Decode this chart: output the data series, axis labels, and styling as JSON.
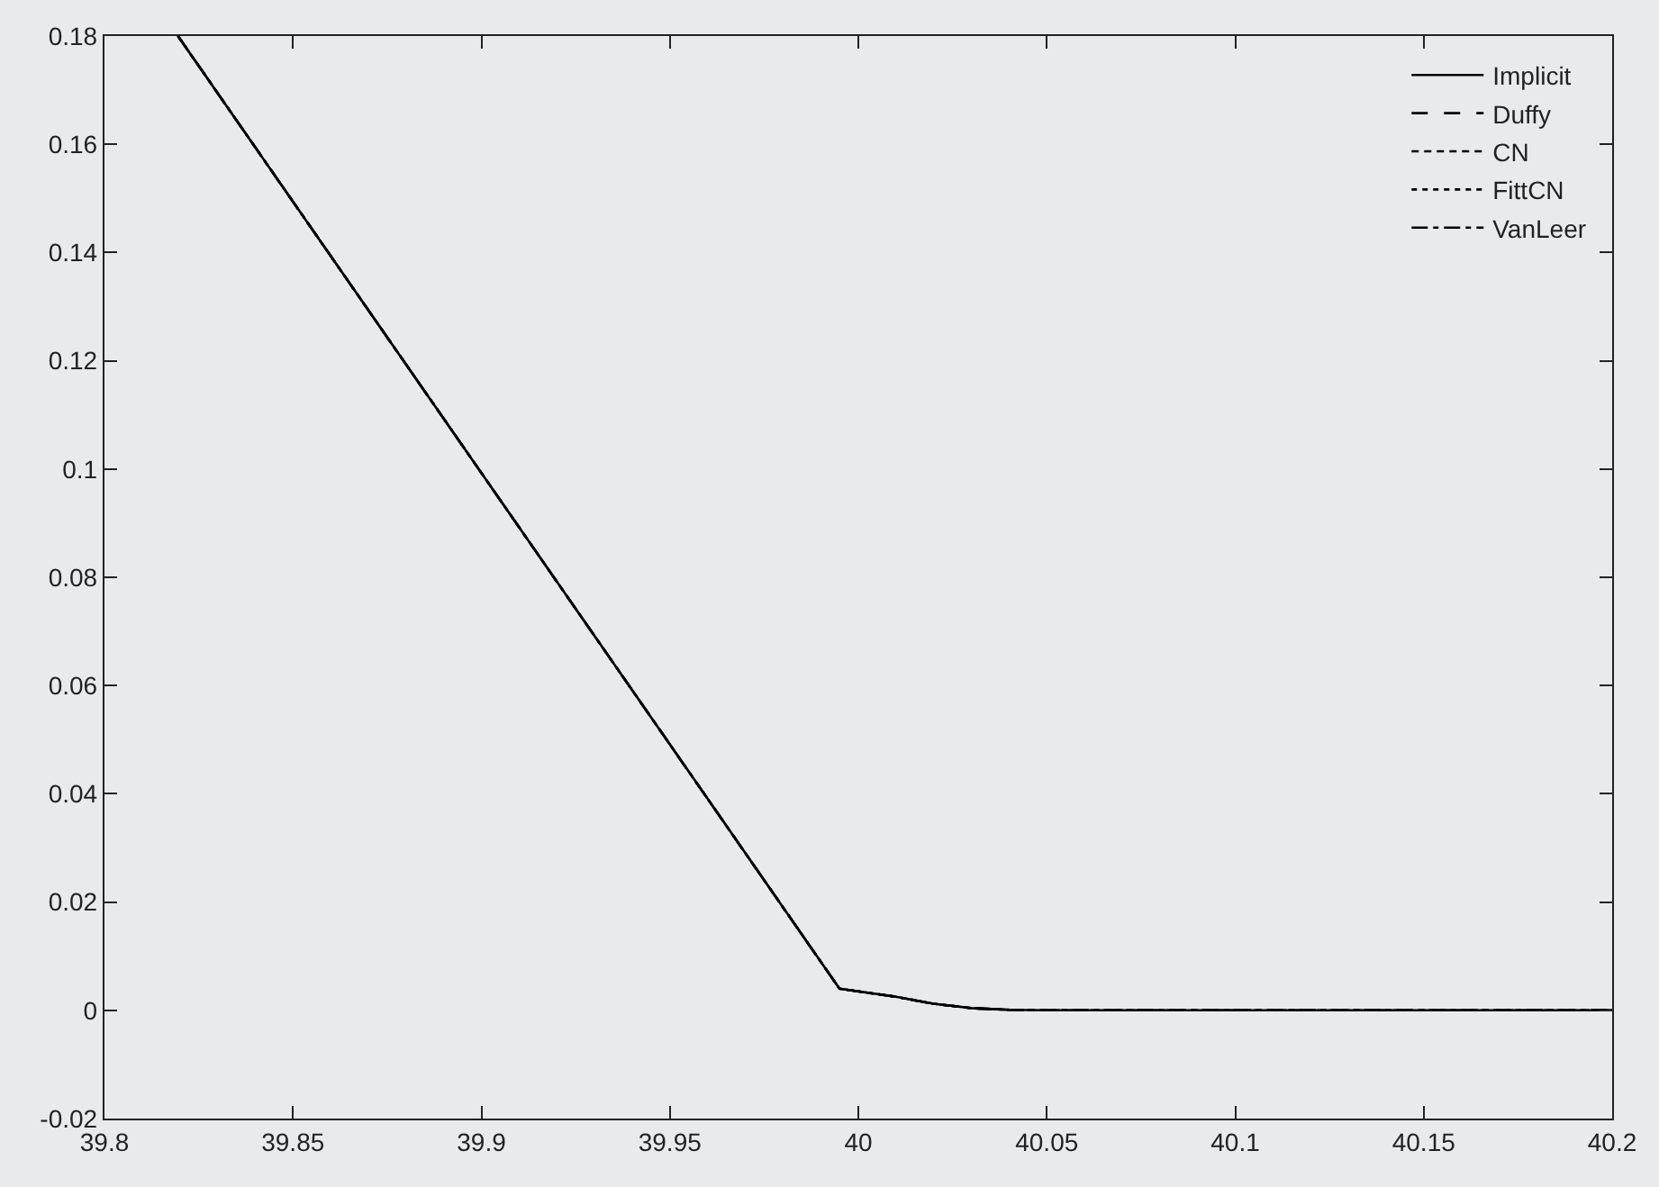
{
  "chart_data": {
    "type": "line",
    "x": [
      39.8195,
      39.995,
      40.01,
      40.02,
      40.03,
      40.04,
      40.05,
      40.2
    ],
    "series": [
      {
        "name": "Implicit",
        "color": "#000000",
        "line_style": "solid",
        "values": [
          0.18,
          0.004,
          0.0025,
          0.0012,
          0.0004,
          0.0001,
          0,
          0
        ]
      },
      {
        "name": "Duffy",
        "color": "#000000",
        "line_style": "dashed",
        "values": [
          0.18,
          0.004,
          0.0025,
          0.0012,
          0.0004,
          0.0001,
          0,
          0
        ]
      },
      {
        "name": "CN",
        "color": "#000000",
        "line_style": "shortdash",
        "values": [
          0.18,
          0.004,
          0.0025,
          0.0012,
          0.0004,
          0.0001,
          0,
          0
        ]
      },
      {
        "name": "FittCN",
        "color": "#000000",
        "line_style": "dotted",
        "values": [
          0.18,
          0.004,
          0.0025,
          0.0012,
          0.0004,
          0.0001,
          0,
          0
        ]
      },
      {
        "name": "VanLeer",
        "color": "#000000",
        "line_style": "dashdot",
        "values": [
          0.18,
          0.004,
          0.0025,
          0.0012,
          0.0004,
          0.0001,
          0,
          0
        ]
      }
    ],
    "xlim": [
      39.8,
      40.2
    ],
    "xticks": [
      39.8,
      39.85,
      39.9,
      39.95,
      40,
      40.05,
      40.1,
      40.15,
      40.2
    ],
    "ylim": [
      -0.02,
      0.18
    ],
    "yticks": [
      -0.02,
      0,
      0.02,
      0.04,
      0.06,
      0.08,
      0.1,
      0.12,
      0.14,
      0.16,
      0.18
    ],
    "grid": false,
    "legend": "top right",
    "marker": "none"
  }
}
